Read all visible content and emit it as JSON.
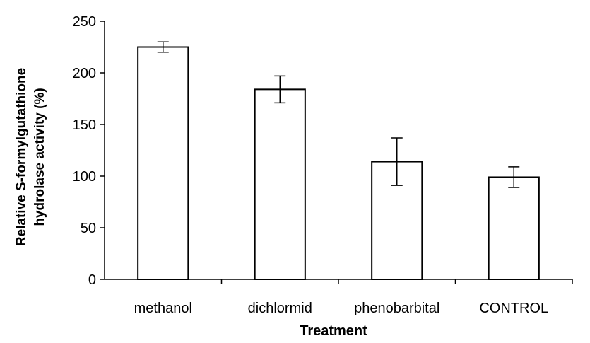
{
  "chart_data": {
    "type": "bar",
    "categories": [
      "methanol",
      "dichlormid",
      "phenobarbital",
      "CONTROL"
    ],
    "values": [
      225,
      184,
      114,
      99
    ],
    "errors": [
      5,
      13,
      23,
      10
    ],
    "title": "",
    "xlabel": "Treatment",
    "ylabel_lines": [
      "Relative S-formylgutathione",
      "hydrolase activity (%)"
    ],
    "ylim": [
      0,
      250
    ],
    "yticks": [
      0,
      50,
      100,
      150,
      200,
      250
    ],
    "grid": false,
    "legend": "none"
  }
}
